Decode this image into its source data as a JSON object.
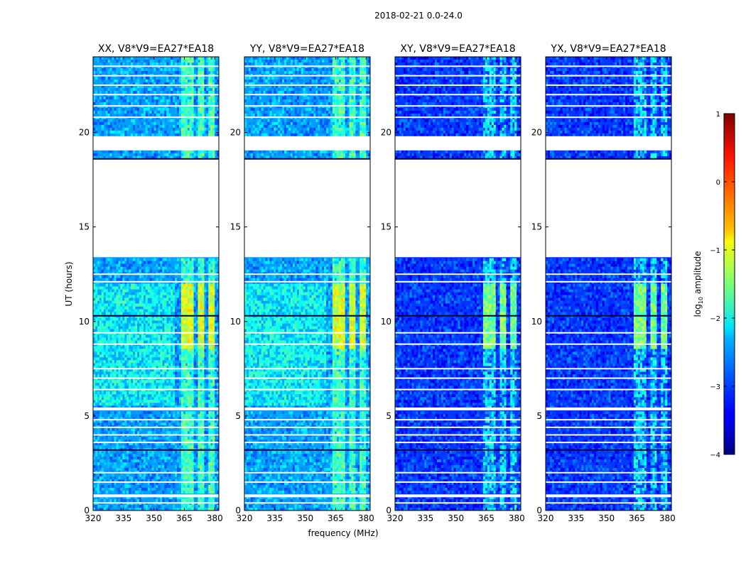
{
  "figure": {
    "title": "2018-02-21 0.0-24.0",
    "xlabel": "frequency (MHz)",
    "ylabel": "UT (hours)"
  },
  "chart_data": {
    "type": "heatmap",
    "title": "2018-02-21 0.0-24.0",
    "xlabel": "frequency (MHz)",
    "ylabel": "UT (hours)",
    "xlim": [
      320,
      382
    ],
    "ylim": [
      0,
      24
    ],
    "x_ticks": [
      320,
      335,
      350,
      365,
      380
    ],
    "y_ticks": [
      0,
      5,
      10,
      15,
      20
    ],
    "panels": [
      {
        "title": "XX, V8*V9=EA27*EA18",
        "pol": "XX",
        "background_level": -2.6
      },
      {
        "title": "YY, V8*V9=EA27*EA18",
        "pol": "YY",
        "background_level": -2.6
      },
      {
        "title": "XY, V8*V9=EA27*EA18",
        "pol": "XY",
        "background_level": -3.1
      },
      {
        "title": "YX, V8*V9=EA27*EA18",
        "pol": "YX",
        "background_level": -3.1
      }
    ],
    "flagged_ut_ranges": [
      [
        13.4,
        18.6
      ],
      [
        19.05,
        19.8
      ],
      [
        0.7,
        0.85
      ],
      [
        5.3,
        5.45
      ]
    ],
    "rfi_channels_mhz": [
      364.5,
      368.5,
      373.5,
      378
    ],
    "rfi_ut_range": [
      0,
      24
    ],
    "rfi_strong_ut_range": [
      8.5,
      12.0
    ],
    "colorbar": {
      "label": "log10 amplitude",
      "min": -4,
      "max": 1,
      "ticks": [
        1,
        0,
        -1,
        -2,
        -3,
        -4
      ],
      "colormap": "jet"
    }
  }
}
